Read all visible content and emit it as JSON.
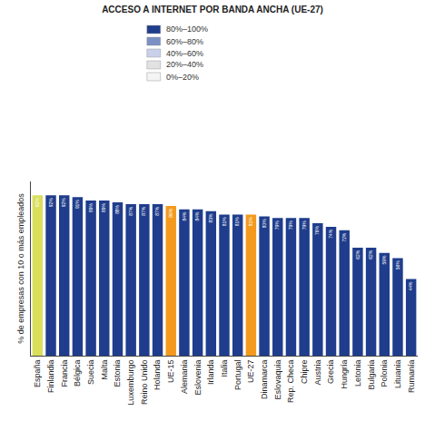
{
  "chart_data": {
    "type": "bar",
    "title": "ACCESO A INTERNET POR BANDA ANCHA (UE-27)",
    "y_label": "% de empresas con 10 o más empleados",
    "categories": [
      "España",
      "Finlandia",
      "Francia",
      "Bélgica",
      "Suecia",
      "Malta",
      "Estonia",
      "Luxemburgo",
      "Reino Unido",
      "Holanda",
      "UE-15",
      "Alemania",
      "Eslovenia",
      "Irlanda",
      "Italia",
      "Portugal",
      "UE-27",
      "Dinamarca",
      "Eslovaquia",
      "Rep. Checa",
      "Chipre",
      "Austria",
      "Grecia",
      "Hungría",
      "Letonia",
      "Bulgaria",
      "Polonia",
      "Lituania",
      "Rumanía"
    ],
    "values": [
      92,
      92,
      92,
      91,
      89,
      89,
      88,
      87,
      87,
      87,
      86,
      84,
      84,
      83,
      81,
      81,
      81,
      80,
      79,
      79,
      79,
      76,
      74,
      72,
      62,
      62,
      59,
      56,
      44
    ],
    "value_labels": [
      "92%",
      "92%",
      "92%",
      "91%",
      "89%",
      "89%",
      "88%",
      "87%",
      "87%",
      "87%",
      "86%",
      "84%",
      "84%",
      "83%",
      "81%",
      "81%",
      "81%",
      "80%",
      "79%",
      "79%",
      "79%",
      "76%",
      "74%",
      "72%",
      "62%",
      "62%",
      "59%",
      "56%",
      "44%"
    ],
    "colors": [
      "#d9df5b",
      "#1f3d8c",
      "#1f3d8c",
      "#1f3d8c",
      "#1f3d8c",
      "#1f3d8c",
      "#1f3d8c",
      "#1f3d8c",
      "#1f3d8c",
      "#1f3d8c",
      "#f39a1e",
      "#1f3d8c",
      "#1f3d8c",
      "#1f3d8c",
      "#1f3d8c",
      "#1f3d8c",
      "#f39a1e",
      "#1f3d8c",
      "#1f3d8c",
      "#1f3d8c",
      "#1f3d8c",
      "#1f3d8c",
      "#1f3d8c",
      "#1f3d8c",
      "#1f3d8c",
      "#1f3d8c",
      "#1f3d8c",
      "#1f3d8c",
      "#1f3d8c"
    ],
    "ylim": [
      0,
      100
    ],
    "data_labels": true,
    "tick_labels": "x",
    "grid": false,
    "color_scale": [
      {
        "label": "80%–100%",
        "color": "#1f3d8c"
      },
      {
        "label": "60%–80%",
        "color": "#7b8fc4"
      },
      {
        "label": "40%–60%",
        "color": "#c9d0ea"
      },
      {
        "label": "20%–40%",
        "color": "#e2e2e2"
      },
      {
        "label": "0%–20%",
        "color": "#f4f4f4"
      }
    ]
  }
}
